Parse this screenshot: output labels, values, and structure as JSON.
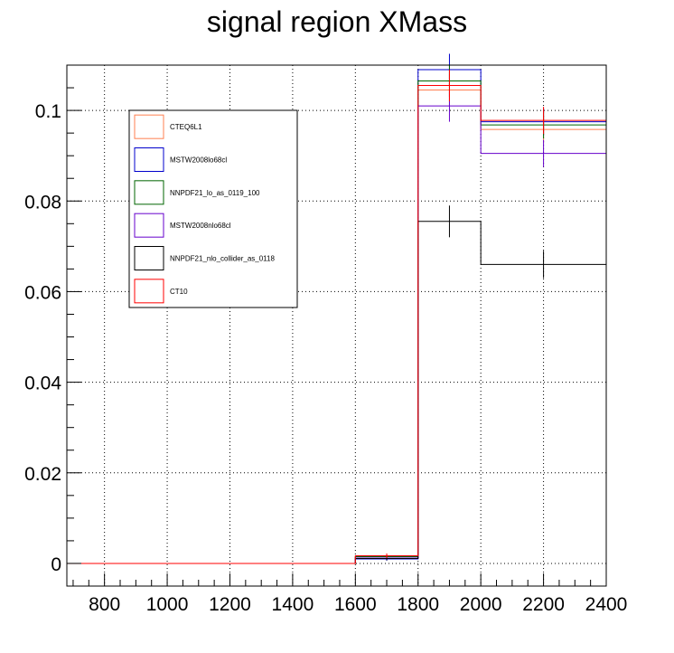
{
  "chart_data": {
    "type": "histogram",
    "title": "signal region XMass",
    "xlabel": "",
    "ylabel": "",
    "xlim": [
      680,
      2400
    ],
    "ylim": [
      -0.005,
      0.11
    ],
    "grid": true,
    "legend_position": "top-left",
    "x_ticks": [
      800,
      1000,
      1200,
      1400,
      1600,
      1800,
      2000,
      2200,
      2400
    ],
    "y_ticks": [
      0,
      0.02,
      0.04,
      0.06,
      0.08,
      0.1
    ],
    "y_tick_labels": [
      "0",
      "0.02",
      "0.04",
      "0.06",
      "0.08",
      "0.1"
    ],
    "bin_edges": [
      1600,
      1800,
      2000,
      2400
    ],
    "series": [
      {
        "name": "CTEQ6L1",
        "color": "#ff7f50",
        "values": [
          0.0015,
          0.1045,
          0.0958
        ],
        "errors": [
          0.0005,
          0.0035,
          0.003
        ]
      },
      {
        "name": "MSTW2008lo68cl",
        "color": "#0000cc",
        "values": [
          0.001,
          0.109,
          0.0975
        ],
        "errors": [
          0.0004,
          0.0035,
          0.003
        ]
      },
      {
        "name": "NNPDF21_lo_as_0119_100",
        "color": "#006400",
        "values": [
          0.0015,
          0.1065,
          0.0968
        ],
        "errors": [
          0.0005,
          0.0035,
          0.003
        ]
      },
      {
        "name": "MSTW2008nlo68cl",
        "color": "#6600cc",
        "values": [
          0.0012,
          0.101,
          0.0905
        ],
        "errors": [
          0.0004,
          0.0035,
          0.003
        ]
      },
      {
        "name": "NNPDF21_nlo_collider_as_0118",
        "color": "#000000",
        "values": [
          0.0011,
          0.0755,
          0.066
        ],
        "errors": [
          0.0004,
          0.0035,
          0.003
        ]
      },
      {
        "name": "CT10",
        "color": "#ff0000",
        "values": [
          0.0017,
          0.1055,
          0.0978
        ],
        "errors": [
          0.0005,
          0.0035,
          0.003
        ]
      }
    ]
  }
}
